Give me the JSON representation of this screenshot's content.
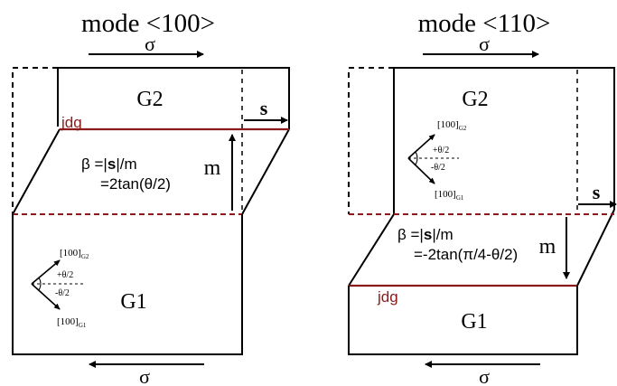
{
  "panels": [
    {
      "title": "mode <100>",
      "sigma_top": "σ",
      "sigma_bottom": "σ",
      "grain_top": "G2",
      "grain_bottom": "G1",
      "jdg_label": "jdg",
      "s_label": "s",
      "m_label": "m",
      "beta_prefix": "β =|",
      "beta_bold": "s",
      "beta_suffix": "|/m",
      "formula": "=2tan(θ/2)",
      "dir_g2_main": "[100]",
      "dir_g2_sub": "G2",
      "dir_g1_main": "[100]",
      "dir_g1_sub": "G1",
      "angle_plus": "+θ/2",
      "angle_minus": "-θ/2"
    },
    {
      "title": "mode <110>",
      "sigma_top": "σ",
      "sigma_bottom": "σ",
      "grain_top": "G2",
      "grain_bottom": "G1",
      "jdg_label": "jdg",
      "s_label": "s",
      "m_label": "m",
      "beta_prefix": "β =|",
      "beta_bold": "s",
      "beta_suffix": "|/m",
      "formula": "=-2tan(π/4-θ/2)",
      "dir_g2_main": "[100]",
      "dir_g2_sub": "G2",
      "dir_g1_main": "[100]",
      "dir_g1_sub": "G1",
      "angle_plus": "+θ/2",
      "angle_minus": "-θ/2"
    }
  ],
  "colors": {
    "line": "#000000",
    "boundary": "#8b1a1a",
    "jdg_text": "#8b1a1a"
  }
}
